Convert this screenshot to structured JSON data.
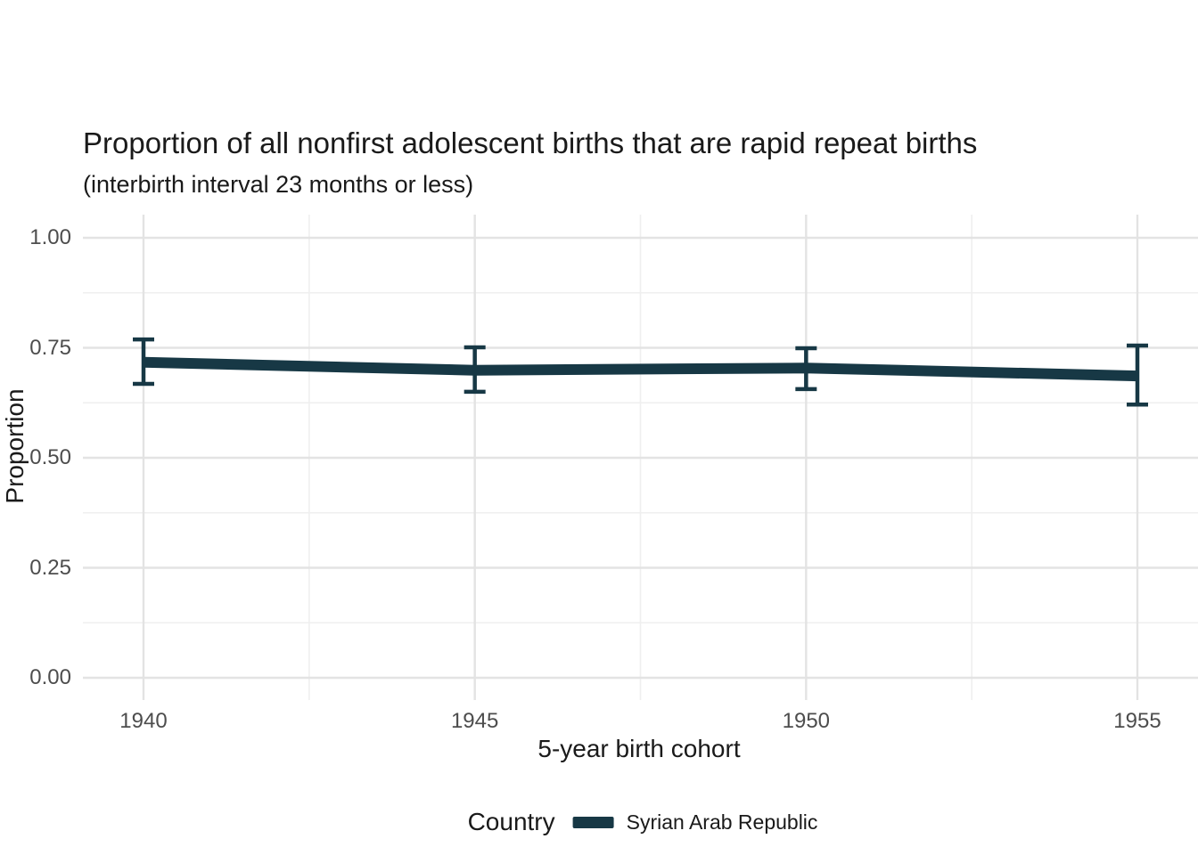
{
  "chart_data": {
    "type": "line",
    "title": "Proportion of all nonfirst adolescent births that are rapid repeat births",
    "subtitle": "(interbirth interval 23 months or less)",
    "xlabel": "5-year birth cohort",
    "ylabel": "Proportion",
    "xlim": [
      1940,
      1955
    ],
    "ylim": [
      0,
      1
    ],
    "x_ticks": [
      1940,
      1945,
      1950,
      1955
    ],
    "x_tick_labels": [
      "1940",
      "1945",
      "1950",
      "1955"
    ],
    "y_ticks": [
      1.0,
      0.75,
      0.5,
      0.25,
      0.0
    ],
    "y_tick_labels": [
      "1.00",
      "0.75",
      "0.50",
      "0.25",
      "0.00"
    ],
    "x_minor_ticks": [
      1942.5,
      1947.5,
      1952.5
    ],
    "y_minor_ticks": [
      0.875,
      0.625,
      0.375,
      0.125
    ],
    "grid": "major+minor",
    "x": [
      1940,
      1945,
      1950,
      1955
    ],
    "series": [
      {
        "name": "Syrian Arab Republic",
        "color": "#173845",
        "values": [
          0.717,
          0.699,
          0.704,
          0.686
        ],
        "ci_low": [
          0.668,
          0.65,
          0.656,
          0.621
        ],
        "ci_high": [
          0.769,
          0.751,
          0.749,
          0.755
        ]
      }
    ],
    "legend": {
      "title": "Country",
      "position": "bottom",
      "entries": [
        {
          "label": "Syrian Arab Republic",
          "color": "#173845"
        }
      ]
    },
    "colors": {
      "line": "#173845",
      "grid_major": "#e3e3e3",
      "grid_minor": "#efefef",
      "tick_label": "#4d4d4d",
      "text": "#1a1a1a",
      "background": "#ffffff"
    }
  }
}
